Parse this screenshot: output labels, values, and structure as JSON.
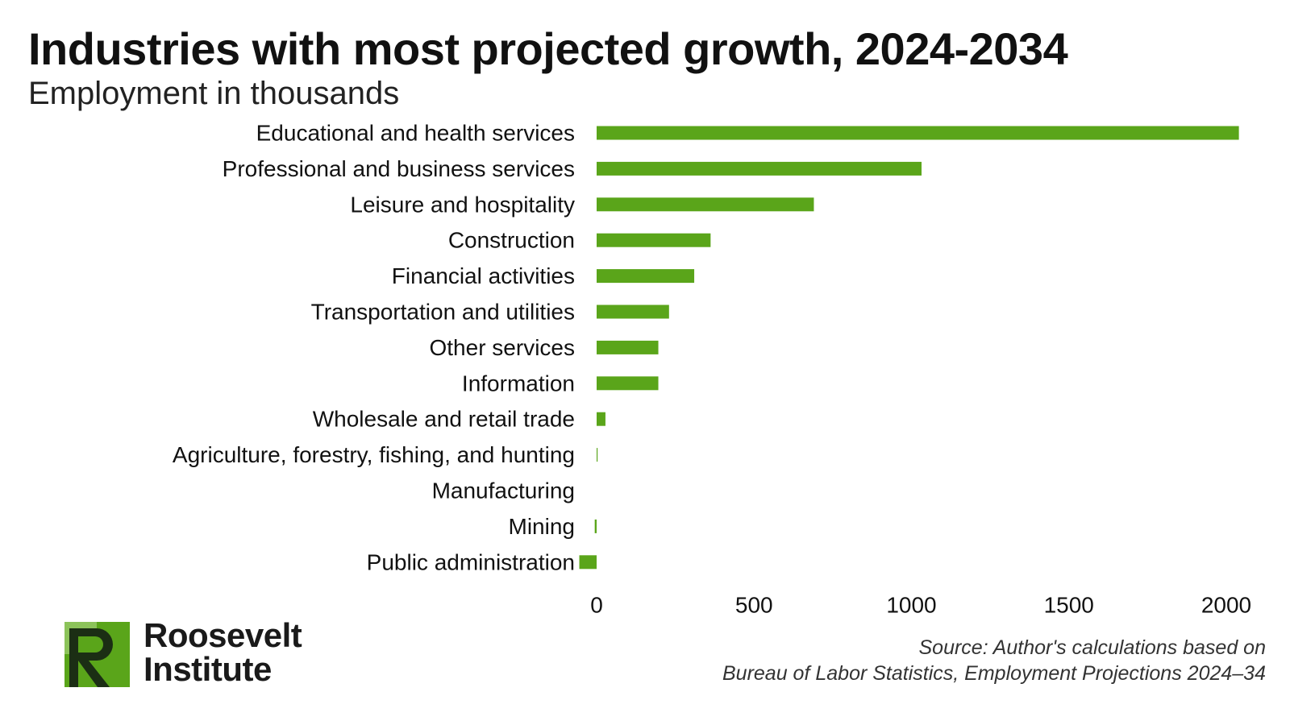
{
  "header": {
    "title": "Industries with most projected growth, 2024-2034",
    "subtitle": "Employment in thousands"
  },
  "chart_data": {
    "type": "bar",
    "orientation": "horizontal",
    "title": "Industries with most projected growth, 2024-2034",
    "subtitle": "Employment in thousands",
    "categories": [
      "Educational and health services",
      "Professional and business services",
      "Leisure and hospitality",
      "Construction",
      "Financial activities",
      "Transportation and utilities",
      "Other services",
      "Information",
      "Wholesale and retail trade",
      "Agriculture, forestry, fishing, and hunting",
      "Manufacturing",
      "Mining",
      "Public administration"
    ],
    "values": [
      2040,
      1032,
      690,
      362,
      310,
      230,
      196,
      196,
      28,
      3,
      0,
      -6,
      -55
    ],
    "xlim": [
      0,
      2000
    ],
    "x_ticks": [
      "0",
      "500",
      "1000",
      "1500",
      "2000"
    ],
    "grid": false,
    "legend": "none",
    "bar_color": "#5aa51a"
  },
  "footer": {
    "source_line1": "Source: Author's calculations based on",
    "source_line2": "Bureau of Labor Statistics, Employment Projections 2024–34",
    "logo_line1": "Roosevelt",
    "logo_line2": "Institute"
  },
  "colors": {
    "brand_green": "#5aa51a",
    "logo_dark": "#1b2e14"
  }
}
